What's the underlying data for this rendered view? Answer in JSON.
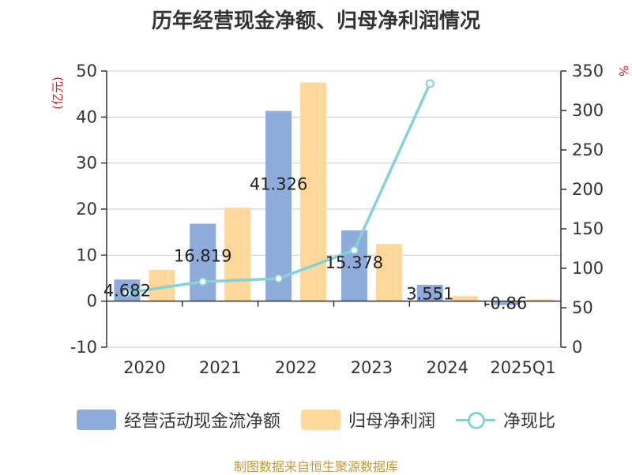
{
  "title": "历年经营现金净额、归母净利润情况",
  "source": "制图数据来自恒生聚源数据库",
  "colors": {
    "operating": "#8eabd9",
    "profit": "#fdd89a",
    "ratio": "#86d0d8",
    "unit": "#d42020"
  },
  "chart_data": {
    "type": "bar",
    "categories": [
      "2020",
      "2021",
      "2022",
      "2023",
      "2024",
      "2025Q1"
    ],
    "series": [
      {
        "name": "经营活动现金流净额",
        "type": "bar",
        "axis": "left",
        "values": [
          4.682,
          16.819,
          41.326,
          15.378,
          3.551,
          -0.86
        ],
        "labels": [
          "4.682",
          "16.819",
          "41.326",
          "15.378",
          "3.551",
          "-0.86"
        ]
      },
      {
        "name": "归母净利润",
        "type": "bar",
        "axis": "left",
        "values": [
          6.8,
          20.3,
          47.5,
          12.4,
          1.1,
          0.4
        ]
      },
      {
        "name": "净现比",
        "type": "line",
        "axis": "right",
        "values": [
          69,
          83,
          87,
          123,
          334,
          null
        ]
      }
    ],
    "y_left": {
      "label": "(亿元)",
      "min": -10,
      "max": 50,
      "ticks": [
        -10,
        0,
        10,
        20,
        30,
        40,
        50
      ]
    },
    "y_right": {
      "label": "%",
      "min": 0,
      "max": 350,
      "ticks": [
        0,
        50,
        100,
        150,
        200,
        250,
        300,
        350
      ]
    },
    "legend_position": "bottom",
    "grid": true
  }
}
